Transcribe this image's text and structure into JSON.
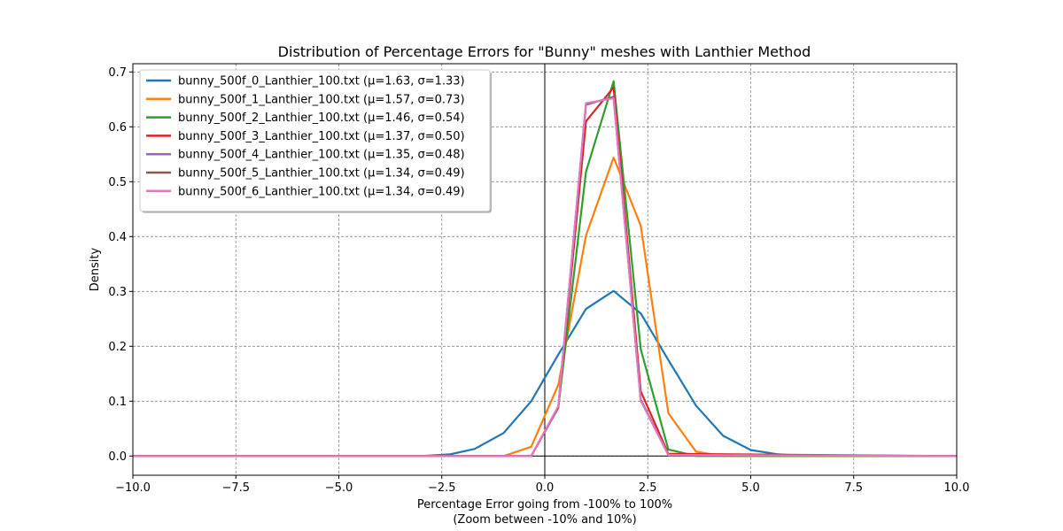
{
  "chart_data": {
    "type": "line",
    "title": "Distribution of Percentage Errors for \"Bunny\" meshes with Lanthier Method",
    "xlabel": "Percentage Error going from -100% to 100%",
    "xlabel_line2": "(Zoom between -10% and 10%)",
    "ylabel": "Density",
    "xlim": [
      -10,
      10
    ],
    "ylim": [
      -0.035,
      0.715
    ],
    "xticks": [
      -10.0,
      -7.5,
      -5.0,
      -2.5,
      0.0,
      2.5,
      5.0,
      7.5,
      10.0
    ],
    "xtick_labels": [
      "−10.0",
      "−7.5",
      "−5.0",
      "−2.5",
      "0.0",
      "2.5",
      "5.0",
      "7.5",
      "10.0"
    ],
    "yticks": [
      0.0,
      0.1,
      0.2,
      0.3,
      0.4,
      0.5,
      0.6,
      0.7
    ],
    "ytick_labels": [
      "0.0",
      "0.1",
      "0.2",
      "0.3",
      "0.4",
      "0.5",
      "0.6",
      "0.7"
    ],
    "grid": true,
    "legend_position": "top-left",
    "reference_lines": {
      "vertical_x": 0,
      "horizontal_y": 0
    },
    "series": [
      {
        "name": "bunny_500f_0_Lanthier_100.txt (μ=1.63, σ=1.33)",
        "color": "#1f77b4",
        "x": [
          -10,
          -3.7,
          -3.0,
          -2.3,
          -1.7,
          -1.0,
          -0.33,
          0.33,
          1.0,
          1.67,
          2.33,
          3.0,
          3.67,
          4.33,
          5.0,
          5.67,
          6.33,
          7.0,
          10
        ],
        "y": [
          0,
          0,
          0,
          0.003,
          0.013,
          0.042,
          0.1,
          0.185,
          0.268,
          0.301,
          0.26,
          0.175,
          0.092,
          0.037,
          0.011,
          0.003,
          0,
          0,
          0
        ]
      },
      {
        "name": "bunny_500f_1_Lanthier_100.txt (μ=1.57, σ=0.73)",
        "color": "#ff7f0e",
        "x": [
          -10,
          -1.0,
          -0.33,
          0.33,
          1.0,
          1.67,
          2.33,
          3.0,
          3.67,
          4.33,
          10
        ],
        "y": [
          0,
          0,
          0.017,
          0.13,
          0.402,
          0.544,
          0.42,
          0.078,
          0.008,
          0,
          0
        ]
      },
      {
        "name": "bunny_500f_2_Lanthier_100.txt (μ=1.46, σ=0.54)",
        "color": "#2ca02c",
        "x": [
          -10,
          -0.33,
          0.33,
          1.0,
          1.67,
          2.33,
          3.0,
          3.67,
          10
        ],
        "y": [
          0,
          0,
          0.09,
          0.518,
          0.683,
          0.195,
          0.012,
          0,
          0
        ]
      },
      {
        "name": "bunny_500f_3_Lanthier_100.txt (μ=1.37, σ=0.50)",
        "color": "#d62728",
        "x": [
          -10,
          -0.33,
          0.33,
          1.0,
          1.67,
          2.33,
          3.0,
          10
        ],
        "y": [
          0,
          0,
          0.088,
          0.61,
          0.672,
          0.118,
          0.004,
          0
        ]
      },
      {
        "name": "bunny_500f_4_Lanthier_100.txt (μ=1.35, σ=0.48)",
        "color": "#9467bd",
        "x": [
          -10,
          -0.33,
          0.33,
          1.0,
          1.67,
          2.33,
          3.0,
          10
        ],
        "y": [
          0,
          0,
          0.09,
          0.64,
          0.655,
          0.103,
          0.002,
          0
        ]
      },
      {
        "name": "bunny_500f_5_Lanthier_100.txt (μ=1.34, σ=0.49)",
        "color": "#8c564b",
        "x": [
          -10,
          -0.33,
          0.33,
          1.0,
          1.67,
          2.33,
          3.0,
          10
        ],
        "y": [
          0,
          0,
          0.09,
          0.642,
          0.653,
          0.102,
          0.002,
          0
        ]
      },
      {
        "name": "bunny_500f_6_Lanthier_100.txt (μ=1.34, σ=0.49)",
        "color": "#e377c2",
        "x": [
          -10,
          -0.33,
          0.33,
          1.0,
          1.67,
          2.33,
          3.0,
          10
        ],
        "y": [
          0,
          0,
          0.091,
          0.643,
          0.652,
          0.101,
          0.002,
          0
        ]
      }
    ]
  }
}
